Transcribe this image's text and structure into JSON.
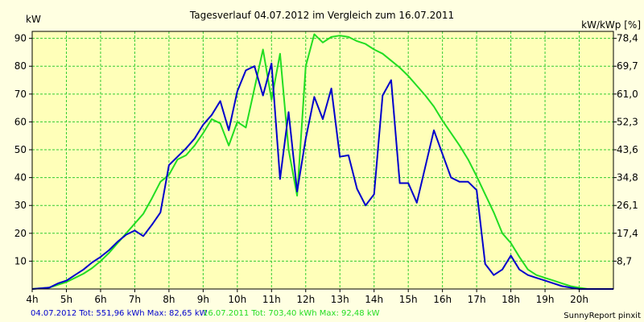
{
  "chart_data": {
    "type": "line",
    "title": "Tagesverlauf 04.07.2012 im Vergleich zum 16.07.2011",
    "ylabel_left": "kW",
    "ylabel_right": "kW/kWp [%]",
    "xlim": [
      4,
      21
    ],
    "ylim": [
      0,
      92.5
    ],
    "grid": true,
    "x_ticks": [
      {
        "x": 4,
        "label": "4h"
      },
      {
        "x": 5,
        "label": "5h"
      },
      {
        "x": 6,
        "label": "6h"
      },
      {
        "x": 7,
        "label": "7h"
      },
      {
        "x": 8,
        "label": "8h"
      },
      {
        "x": 9,
        "label": "9h"
      },
      {
        "x": 10,
        "label": "10h"
      },
      {
        "x": 11,
        "label": "11h"
      },
      {
        "x": 12,
        "label": "12h"
      },
      {
        "x": 13,
        "label": "13h"
      },
      {
        "x": 14,
        "label": "14h"
      },
      {
        "x": 15,
        "label": "15h"
      },
      {
        "x": 16,
        "label": "16h"
      },
      {
        "x": 17,
        "label": "17h"
      },
      {
        "x": 18,
        "label": "18h"
      },
      {
        "x": 19,
        "label": "19h"
      },
      {
        "x": 20,
        "label": "20h"
      }
    ],
    "y_ticks_left": [
      {
        "y": 10,
        "label": "10"
      },
      {
        "y": 20,
        "label": "20"
      },
      {
        "y": 30,
        "label": "30"
      },
      {
        "y": 40,
        "label": "40"
      },
      {
        "y": 50,
        "label": "50"
      },
      {
        "y": 60,
        "label": "60"
      },
      {
        "y": 70,
        "label": "70"
      },
      {
        "y": 80,
        "label": "80"
      },
      {
        "y": 90,
        "label": "90"
      }
    ],
    "y_ticks_right": [
      {
        "y": 10,
        "label": "8,7"
      },
      {
        "y": 20,
        "label": "17,4"
      },
      {
        "y": 30,
        "label": "26,1"
      },
      {
        "y": 40,
        "label": "34,8"
      },
      {
        "y": 50,
        "label": "43,6"
      },
      {
        "y": 60,
        "label": "52,3"
      },
      {
        "y": 70,
        "label": "61,0"
      },
      {
        "y": 80,
        "label": "69,7"
      },
      {
        "y": 90,
        "label": "78,4"
      }
    ],
    "series": [
      {
        "name": "04.07.2012",
        "color": "#0000cc",
        "x": [
          4.0,
          4.5,
          4.75,
          5.0,
          5.25,
          5.5,
          5.75,
          6.0,
          6.25,
          6.5,
          6.75,
          7.0,
          7.25,
          7.5,
          7.75,
          8.0,
          8.25,
          8.5,
          8.75,
          9.0,
          9.25,
          9.5,
          9.75,
          10.0,
          10.25,
          10.5,
          10.75,
          11.0,
          11.25,
          11.5,
          11.75,
          12.0,
          12.25,
          12.5,
          12.75,
          13.0,
          13.25,
          13.5,
          13.75,
          14.0,
          14.25,
          14.5,
          14.75,
          15.0,
          15.25,
          15.5,
          15.75,
          16.0,
          16.25,
          16.5,
          16.75,
          17.0,
          17.25,
          17.5,
          17.75,
          18.0,
          18.25,
          18.5,
          18.75,
          19.0,
          19.25,
          19.5,
          19.75,
          20.0,
          20.25,
          20.5,
          20.75,
          21.0
        ],
        "y": [
          0,
          0.5,
          2,
          3,
          5,
          7,
          9.5,
          11.5,
          14,
          17,
          19.5,
          21,
          19,
          23,
          27.5,
          44.5,
          47.5,
          50.5,
          54,
          59,
          62.5,
          67.5,
          57,
          71,
          78.5,
          80,
          69.5,
          81,
          39.5,
          63.5,
          35,
          54,
          69,
          61,
          72,
          47.5,
          48,
          36,
          30,
          34,
          69.5,
          75,
          38,
          38,
          31,
          44,
          57,
          48.5,
          40,
          38.5,
          38.5,
          35.5,
          9,
          5,
          7,
          12,
          7,
          5,
          4,
          3,
          2,
          1,
          0.5,
          0,
          0,
          0,
          0,
          0
        ]
      },
      {
        "name": "16.07.2011",
        "color": "#22dd22",
        "x": [
          4.0,
          4.5,
          4.75,
          5.0,
          5.25,
          5.5,
          5.75,
          6.0,
          6.25,
          6.5,
          6.75,
          7.0,
          7.25,
          7.5,
          7.75,
          8.0,
          8.25,
          8.5,
          8.75,
          9.0,
          9.25,
          9.5,
          9.75,
          10.0,
          10.25,
          10.5,
          10.75,
          11.0,
          11.25,
          11.5,
          11.75,
          12.0,
          12.25,
          12.5,
          12.75,
          13.0,
          13.25,
          13.5,
          13.75,
          14.0,
          14.25,
          14.5,
          14.75,
          15.0,
          15.25,
          15.5,
          15.75,
          16.0,
          16.25,
          16.5,
          16.75,
          17.0,
          17.25,
          17.5,
          17.75,
          18.0,
          18.25,
          18.5,
          18.75,
          19.0,
          19.25,
          19.5,
          19.75,
          20.0,
          20.25,
          20.5,
          20.75,
          21.0
        ],
        "y": [
          0,
          0.5,
          1.5,
          2.5,
          4,
          5.5,
          7.5,
          10,
          13,
          16.5,
          20,
          23.5,
          27,
          32.5,
          38.5,
          41,
          46.5,
          48,
          51.5,
          56,
          61,
          59.5,
          51.5,
          60,
          58,
          72,
          86,
          68,
          84.5,
          50,
          33.5,
          80,
          91.5,
          88.5,
          90.5,
          91,
          90.5,
          89,
          88,
          86,
          84.5,
          82,
          79.5,
          76.5,
          73,
          69.5,
          65.5,
          60.5,
          56,
          51.5,
          46.5,
          40.5,
          34,
          27.5,
          20,
          16.5,
          11.5,
          7,
          5,
          4,
          3,
          2,
          1,
          0.5,
          0,
          0,
          0,
          0
        ]
      }
    ]
  },
  "footer": {
    "series1_label": "04.07.2012 Tot: 551,96 kWh Max: 82,65 kW",
    "series2_label": "16.07.2011 Tot: 703,40 kWh Max: 92,48 kW",
    "credit": "SunnyReport pinxit"
  }
}
